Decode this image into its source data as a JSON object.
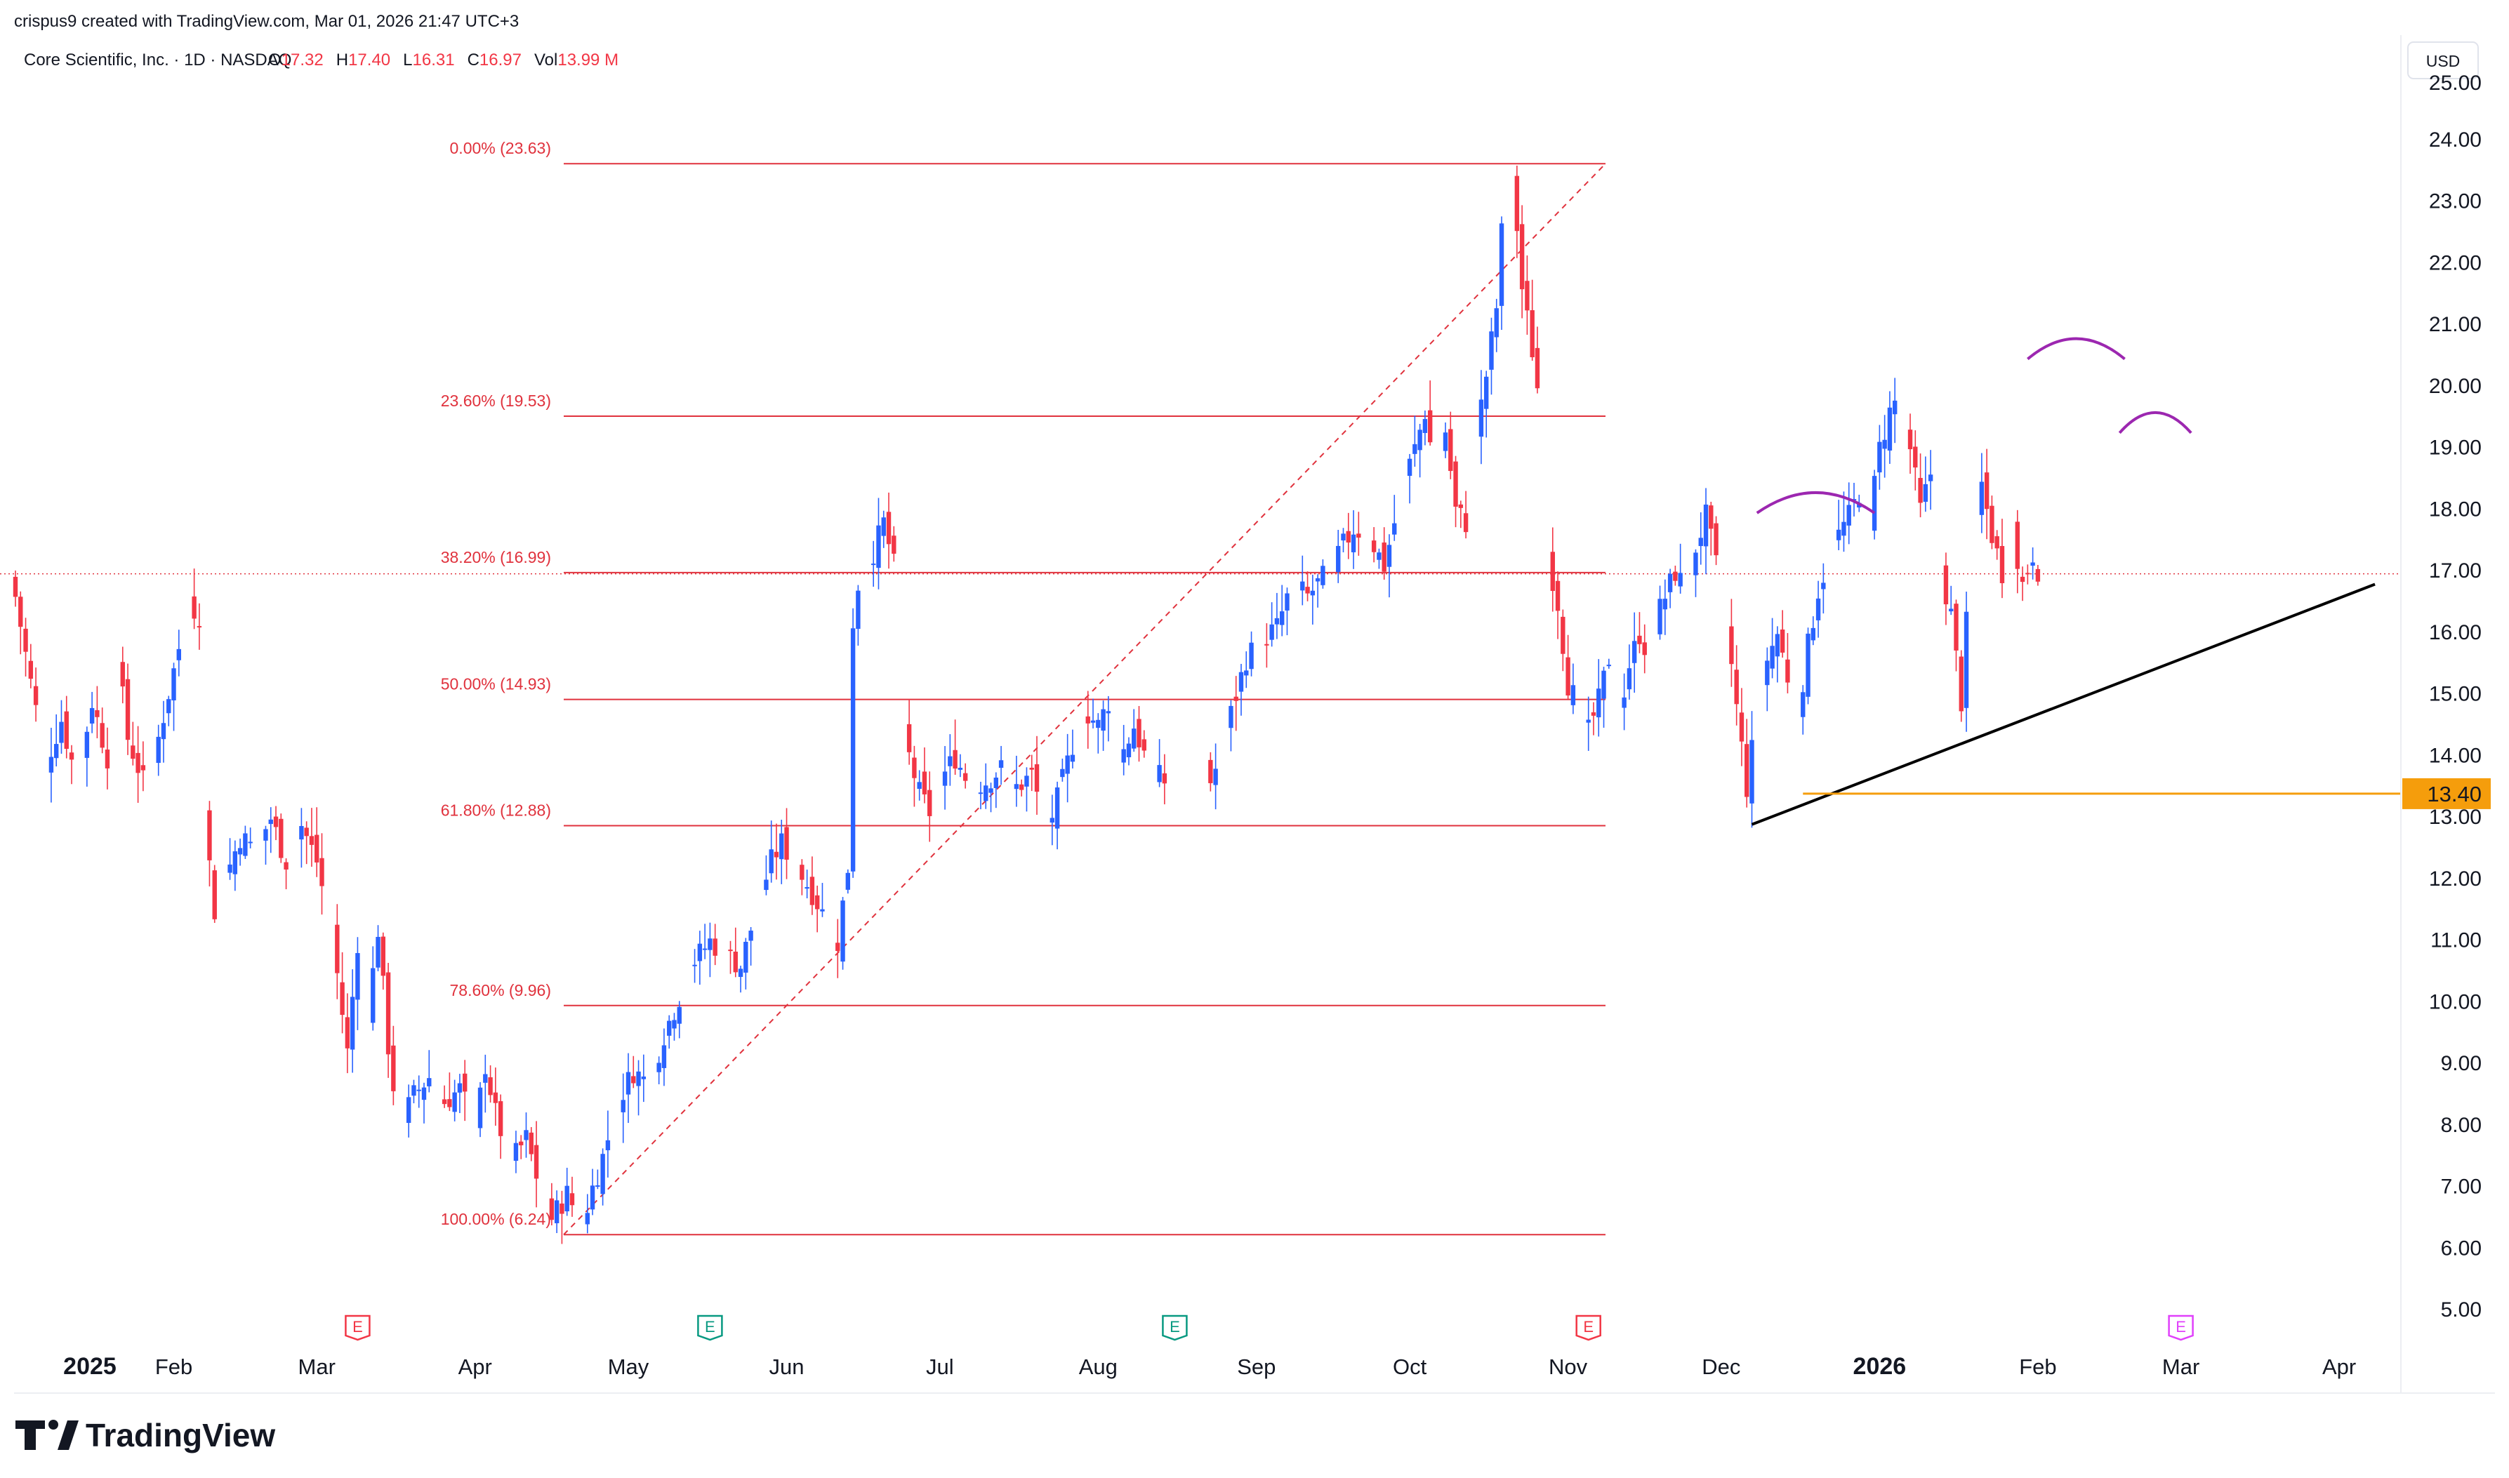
{
  "header": {
    "credit": "crispus9 created with TradingView.com, Mar 01, 2026 21:47 UTC+3",
    "symbol_line": "Core Scientific, Inc. · 1D · NASDAQ",
    "ohlc": [
      {
        "label": "O",
        "value": "17.32"
      },
      {
        "label": "H",
        "value": "17.40"
      },
      {
        "label": "L",
        "value": "16.31"
      },
      {
        "label": "C",
        "value": "16.97"
      },
      {
        "label": "Vol",
        "value": "13.99 M"
      }
    ],
    "currency_button": "USD"
  },
  "footer": {
    "brand": "TradingView"
  },
  "colors": {
    "up": "#2962ff",
    "down": "#f23645",
    "fib": "#e0323d",
    "support": "#f59d0c",
    "trend": "#000000",
    "hs": "#9c27b0",
    "axis_text": "#131722",
    "price_line": "#e0323d"
  },
  "chart_data": {
    "type": "candlestick",
    "title": "Core Scientific, Inc. · 1D · NASDAQ",
    "currency": "USD",
    "ylim": [
      4.7,
      25.5
    ],
    "y_ticks": [
      "5.00",
      "6.00",
      "7.00",
      "8.00",
      "9.00",
      "10.00",
      "11.00",
      "12.00",
      "13.00",
      "14.00",
      "15.00",
      "16.00",
      "17.00",
      "18.00",
      "19.00",
      "20.00",
      "21.00",
      "22.00",
      "23.00",
      "24.00",
      "25.00"
    ],
    "x_ticks": [
      {
        "label": "2025",
        "day": 0,
        "bold": true
      },
      {
        "label": "Feb",
        "day": 31
      },
      {
        "label": "Mar",
        "day": 59
      },
      {
        "label": "Apr",
        "day": 90
      },
      {
        "label": "May",
        "day": 120
      },
      {
        "label": "Jun",
        "day": 151
      },
      {
        "label": "Jul",
        "day": 181
      },
      {
        "label": "Aug",
        "day": 212
      },
      {
        "label": "Sep",
        "day": 243
      },
      {
        "label": "Oct",
        "day": 273
      },
      {
        "label": "Nov",
        "day": 304
      },
      {
        "label": "Dec",
        "day": 334
      },
      {
        "label": "2026",
        "day": 365,
        "bold": true
      },
      {
        "label": "Feb",
        "day": 396
      },
      {
        "label": "Mar",
        "day": 424
      },
      {
        "label": "Apr",
        "day": 455
      }
    ],
    "fib_levels": [
      {
        "label": "0.00% (23.63)",
        "value": 23.63
      },
      {
        "label": "23.60% (19.53)",
        "value": 19.53
      },
      {
        "label": "38.20% (16.99)",
        "value": 16.99
      },
      {
        "label": "50.00% (14.93)",
        "value": 14.93
      },
      {
        "label": "61.80% (12.88)",
        "value": 12.88
      },
      {
        "label": "78.60% (9.96)",
        "value": 9.96
      },
      {
        "label": "100.00% (6.24)",
        "value": 6.24
      }
    ],
    "fib_range_days": [
      98,
      304
    ],
    "current_price": 16.97,
    "support": {
      "value": 13.4,
      "label": "13.40",
      "from_day": 350
    },
    "trendline": {
      "start": {
        "day": 340,
        "price": 12.9
      },
      "end": {
        "day": 462,
        "price": 16.8
      }
    },
    "head_shoulders": [
      {
        "from_day": 341,
        "to_day": 364,
        "peak": 18.3
      },
      {
        "from_day": 394,
        "to_day": 413,
        "peak": 20.8
      },
      {
        "from_day": 412,
        "to_day": 426,
        "peak": 19.6
      }
    ],
    "events": [
      {
        "day": 67,
        "label": "E",
        "type": "past-negative"
      },
      {
        "day": 136,
        "label": "E",
        "type": "past-positive"
      },
      {
        "day": 227,
        "label": "E",
        "type": "past-positive"
      },
      {
        "day": 308,
        "label": "E",
        "type": "past-negative"
      },
      {
        "day": 424,
        "label": "E",
        "type": "upcoming"
      }
    ],
    "anchors": [
      [
        0,
        16.6
      ],
      [
        3,
        15.2
      ],
      [
        6,
        13.9
      ],
      [
        9,
        14.6
      ],
      [
        12,
        13.6
      ],
      [
        15,
        14.9
      ],
      [
        18,
        14.0
      ],
      [
        20,
        15.6
      ],
      [
        22,
        14.3
      ],
      [
        25,
        13.6
      ],
      [
        28,
        14.3
      ],
      [
        31,
        15.4
      ],
      [
        34,
        16.5
      ],
      [
        36,
        16.3
      ],
      [
        37,
        13.0
      ],
      [
        39,
        11.5
      ],
      [
        41,
        12.0
      ],
      [
        44,
        12.7
      ],
      [
        47,
        12.5
      ],
      [
        50,
        13.0
      ],
      [
        53,
        12.3
      ],
      [
        56,
        12.9
      ],
      [
        59,
        12.3
      ],
      [
        62,
        11.1
      ],
      [
        65,
        9.2
      ],
      [
        67,
        11.0
      ],
      [
        69,
        9.8
      ],
      [
        71,
        11.2
      ],
      [
        73,
        9.3
      ],
      [
        75,
        8.0
      ],
      [
        78,
        8.5
      ],
      [
        81,
        8.8
      ],
      [
        84,
        8.4
      ],
      [
        87,
        8.6
      ],
      [
        90,
        8.0
      ],
      [
        92,
        9.0
      ],
      [
        94,
        8.2
      ],
      [
        97,
        7.4
      ],
      [
        100,
        7.8
      ],
      [
        103,
        6.9
      ],
      [
        105,
        6.5
      ],
      [
        108,
        6.9
      ],
      [
        111,
        6.4
      ],
      [
        113,
        7.0
      ],
      [
        115,
        7.5
      ],
      [
        118,
        8.4
      ],
      [
        121,
        8.9
      ],
      [
        124,
        8.7
      ],
      [
        127,
        9.5
      ],
      [
        130,
        10.1
      ],
      [
        133,
        10.7
      ],
      [
        136,
        11.0
      ],
      [
        139,
        10.8
      ],
      [
        142,
        10.6
      ],
      [
        145,
        11.5
      ],
      [
        148,
        12.3
      ],
      [
        150,
        12.6
      ],
      [
        153,
        12.2
      ],
      [
        156,
        11.8
      ],
      [
        159,
        11.3
      ],
      [
        161,
        11.0
      ],
      [
        163,
        12.2
      ],
      [
        164,
        16.2
      ],
      [
        165,
        16.8
      ],
      [
        167,
        17.1
      ],
      [
        170,
        17.8
      ],
      [
        172,
        17.1
      ],
      [
        173,
        15.2
      ],
      [
        175,
        14.0
      ],
      [
        177,
        13.4
      ],
      [
        179,
        13.1
      ],
      [
        181,
        13.6
      ],
      [
        184,
        14.0
      ],
      [
        187,
        13.5
      ],
      [
        190,
        13.6
      ],
      [
        193,
        13.8
      ],
      [
        196,
        13.5
      ],
      [
        199,
        13.7
      ],
      [
        202,
        12.8
      ],
      [
        204,
        13.3
      ],
      [
        207,
        14.2
      ],
      [
        210,
        14.7
      ],
      [
        212,
        14.5
      ],
      [
        214,
        14.9
      ],
      [
        216,
        13.9
      ],
      [
        219,
        14.5
      ],
      [
        222,
        13.8
      ],
      [
        225,
        13.6
      ],
      [
        228,
        14.0
      ],
      [
        231,
        14.2
      ],
      [
        234,
        13.6
      ],
      [
        235,
        13.8
      ],
      [
        238,
        14.7
      ],
      [
        241,
        15.6
      ],
      [
        244,
        15.9
      ],
      [
        247,
        16.1
      ],
      [
        250,
        16.8
      ],
      [
        253,
        16.6
      ],
      [
        256,
        16.9
      ],
      [
        259,
        17.3
      ],
      [
        262,
        17.7
      ],
      [
        265,
        17.6
      ],
      [
        268,
        17.1
      ],
      [
        270,
        17.8
      ],
      [
        272,
        18.5
      ],
      [
        274,
        19.0
      ],
      [
        276,
        19.6
      ],
      [
        278,
        18.6
      ],
      [
        280,
        19.3
      ],
      [
        282,
        18.0
      ],
      [
        284,
        17.8
      ],
      [
        286,
        19.2
      ],
      [
        288,
        20.2
      ],
      [
        290,
        21.3
      ],
      [
        291,
        22.5
      ],
      [
        293,
        23.6
      ],
      [
        295,
        21.6
      ],
      [
        297,
        20.6
      ],
      [
        299,
        19.4
      ],
      [
        300,
        17.3
      ],
      [
        302,
        16.5
      ],
      [
        304,
        15.2
      ],
      [
        306,
        14.8
      ],
      [
        308,
        14.4
      ],
      [
        310,
        14.9
      ],
      [
        312,
        15.6
      ],
      [
        314,
        14.7
      ],
      [
        316,
        15.5
      ],
      [
        318,
        16.0
      ],
      [
        320,
        15.6
      ],
      [
        322,
        16.4
      ],
      [
        325,
        17.0
      ],
      [
        327,
        16.7
      ],
      [
        329,
        17.4
      ],
      [
        331,
        17.9
      ],
      [
        333,
        17.1
      ],
      [
        335,
        16.2
      ],
      [
        337,
        14.8
      ],
      [
        339,
        13.5
      ],
      [
        341,
        14.7
      ],
      [
        343,
        15.6
      ],
      [
        345,
        16.0
      ],
      [
        347,
        15.3
      ],
      [
        349,
        14.7
      ],
      [
        351,
        15.8
      ],
      [
        353,
        16.7
      ],
      [
        355,
        17.2
      ],
      [
        357,
        17.6
      ],
      [
        359,
        17.9
      ],
      [
        361,
        18.3
      ],
      [
        363,
        17.8
      ],
      [
        365,
        19.0
      ],
      [
        367,
        19.6
      ],
      [
        369,
        19.9
      ],
      [
        371,
        19.0
      ],
      [
        373,
        18.0
      ],
      [
        375,
        18.6
      ],
      [
        377,
        17.0
      ],
      [
        379,
        16.3
      ],
      [
        381,
        14.9
      ],
      [
        383,
        17.4
      ],
      [
        385,
        18.4
      ],
      [
        387,
        17.6
      ],
      [
        389,
        17.0
      ],
      [
        391,
        17.7
      ],
      [
        393,
        16.8
      ],
      [
        395,
        17.3
      ],
      [
        397,
        16.8
      ]
    ]
  }
}
